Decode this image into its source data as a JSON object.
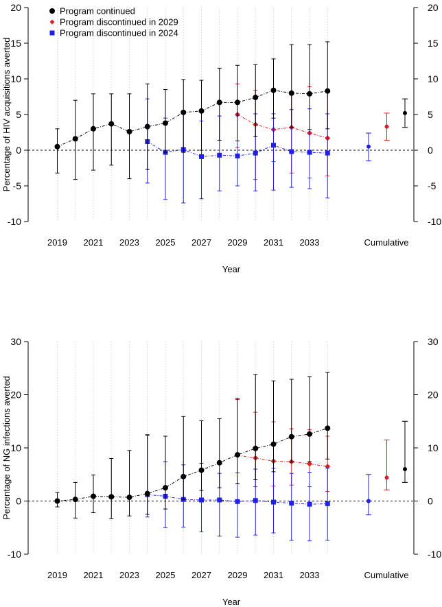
{
  "chart_data": [
    {
      "type": "line",
      "panel": "top",
      "title": "",
      "xlabel": "Year",
      "ylabel": "Percentage of HIV acquisitions averted",
      "ylim": [
        -10,
        20
      ],
      "yticks": [
        -10,
        -5,
        0,
        5,
        10,
        15,
        20
      ],
      "xtick_labels": [
        "2019",
        "2021",
        "2023",
        "2025",
        "2027",
        "2029",
        "2031",
        "2033"
      ],
      "cumulative_label": "Cumulative",
      "legend": [
        "Program continued",
        "Program discontinued in 2029",
        "Program discontinued in 2024"
      ],
      "legend_position": "top-left",
      "series": [
        {
          "name": "Program continued",
          "color": "#000000",
          "marker": "circle",
          "x": [
            2019,
            2020,
            2021,
            2022,
            2023,
            2024,
            2025,
            2026,
            2027,
            2028,
            2029,
            2030,
            2031,
            2032,
            2033,
            2034
          ],
          "values": [
            0.5,
            1.6,
            3.0,
            3.7,
            2.6,
            3.3,
            3.8,
            5.3,
            5.5,
            6.7,
            6.7,
            7.4,
            8.4,
            8.0,
            7.9,
            8.3
          ],
          "lower": [
            -3.2,
            -4.1,
            -2.8,
            -2.1,
            -4.0,
            -2.7,
            -0.3,
            -0.3,
            0.0,
            1.4,
            1.3,
            1.9,
            4.5,
            3.2,
            2.9,
            3.0
          ],
          "upper": [
            3.0,
            7.0,
            7.9,
            7.9,
            7.9,
            9.3,
            8.5,
            9.9,
            9.8,
            11.5,
            11.9,
            12.0,
            12.8,
            14.8,
            14.8,
            15.2
          ],
          "cumulative": {
            "value": 5.2,
            "lower": 3.2,
            "upper": 7.2
          }
        },
        {
          "name": "Program discontinued in 2029",
          "color": "#dd1f1f",
          "marker": "diamond",
          "x": [
            2029,
            2030,
            2031,
            2032,
            2033,
            2034
          ],
          "values": [
            5.0,
            3.6,
            2.9,
            3.2,
            2.4,
            1.7
          ],
          "lower": [
            0.4,
            -4.1,
            -1.6,
            -3.2,
            -3.9,
            -3.6
          ],
          "upper": [
            9.3,
            8.4,
            8.6,
            8.0,
            8.9,
            8.2
          ],
          "cumulative": {
            "value": 3.3,
            "lower": 1.4,
            "upper": 5.2
          }
        },
        {
          "name": "Program discontinued in 2024",
          "color": "#2020e8",
          "marker": "square",
          "x": [
            2024,
            2025,
            2026,
            2027,
            2028,
            2029,
            2030,
            2031,
            2032,
            2033,
            2034
          ],
          "values": [
            1.2,
            -0.3,
            0.1,
            -0.9,
            -0.7,
            -0.8,
            -0.4,
            0.7,
            -0.2,
            -0.3,
            -0.4
          ],
          "lower": [
            -4.6,
            -6.9,
            -7.4,
            -6.8,
            -5.7,
            -5.0,
            -5.7,
            -5.6,
            -5.2,
            -5.4,
            -6.7
          ],
          "upper": [
            7.2,
            4.5,
            5.2,
            4.1,
            4.8,
            4.9,
            5.1,
            5.1,
            5.7,
            5.8,
            5.1
          ],
          "cumulative": {
            "value": 0.5,
            "lower": -1.5,
            "upper": 2.4
          }
        }
      ]
    },
    {
      "type": "line",
      "panel": "bottom",
      "title": "",
      "xlabel": "Year",
      "ylabel": "Percentage of NG infections averted",
      "ylim": [
        -10,
        30
      ],
      "yticks": [
        -10,
        0,
        10,
        20,
        30
      ],
      "xtick_labels": [
        "2019",
        "2021",
        "2023",
        "2025",
        "2027",
        "2029",
        "2031",
        "2033"
      ],
      "cumulative_label": "Cumulative",
      "series": [
        {
          "name": "Program continued",
          "color": "#000000",
          "marker": "circle",
          "x": [
            2019,
            2020,
            2021,
            2022,
            2023,
            2024,
            2025,
            2026,
            2027,
            2028,
            2029,
            2030,
            2031,
            2032,
            2033,
            2034
          ],
          "values": [
            0.0,
            0.3,
            0.9,
            0.8,
            0.7,
            1.4,
            2.5,
            4.6,
            5.8,
            7.2,
            8.7,
            9.9,
            10.7,
            12.1,
            12.6,
            13.7
          ],
          "lower": [
            -1.1,
            -3.2,
            -2.2,
            -3.3,
            -2.8,
            -2.5,
            -1.5,
            0.3,
            2.0,
            2.5,
            3.3,
            4.0,
            5.5,
            7.3,
            7.4,
            7.9
          ],
          "upper": [
            1.6,
            3.5,
            4.9,
            8.0,
            9.5,
            12.4,
            12.2,
            15.9,
            15.1,
            15.5,
            19.3,
            23.8,
            22.6,
            22.9,
            23.4,
            24.2
          ],
          "cumulative": {
            "value": 6.0,
            "lower": 3.5,
            "upper": 15.0
          }
        },
        {
          "name": "Program discontinued in 2029",
          "color": "#dd1f1f",
          "marker": "diamond",
          "x": [
            2029,
            2030,
            2031,
            2032,
            2033,
            2034
          ],
          "values": [
            8.6,
            8.1,
            7.5,
            7.4,
            7.0,
            6.5
          ],
          "lower": [
            3.3,
            2.7,
            2.8,
            3.0,
            2.7,
            1.8
          ],
          "upper": [
            19.1,
            16.7,
            14.9,
            13.6,
            13.4,
            12.2
          ],
          "cumulative": {
            "value": 4.4,
            "lower": 2.1,
            "upper": 11.5
          }
        },
        {
          "name": "Program discontinued in 2024",
          "color": "#2020e8",
          "marker": "square",
          "x": [
            2024,
            2025,
            2026,
            2027,
            2028,
            2029,
            2030,
            2031,
            2032,
            2033,
            2034
          ],
          "values": [
            1.2,
            0.9,
            0.3,
            0.2,
            0.2,
            -0.1,
            0.1,
            -0.2,
            -0.4,
            -0.6,
            -0.5
          ],
          "lower": [
            -3.0,
            -5.0,
            -4.9,
            -5.8,
            -6.6,
            -6.8,
            -6.4,
            -6.0,
            -7.4,
            -7.5,
            -7.4
          ],
          "upper": [
            12.5,
            7.4,
            6.8,
            7.1,
            5.2,
            5.3,
            6.0,
            6.2,
            5.2,
            5.4,
            6.2
          ],
          "cumulative": {
            "value": 0.0,
            "lower": -2.6,
            "upper": 5.0
          }
        }
      ]
    }
  ]
}
